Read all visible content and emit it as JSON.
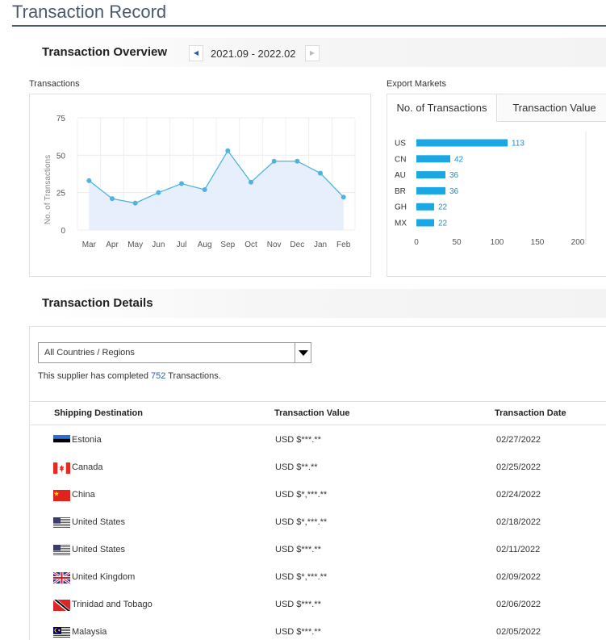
{
  "page": {
    "title": "Transaction Record"
  },
  "overview": {
    "title": "Transaction Overview",
    "range": "2021.09 - 2022.02",
    "prev_icon": "caret-left-icon",
    "next_icon": "caret-right-icon"
  },
  "transactions_chart": {
    "label": "Transactions",
    "chart_data": {
      "type": "area",
      "categories": [
        "Mar",
        "Apr",
        "May",
        "Jun",
        "Jul",
        "Aug",
        "Sep",
        "Oct",
        "Nov",
        "Dec",
        "Jan",
        "Feb"
      ],
      "series": [
        {
          "values": [
            33,
            21,
            18,
            25,
            31,
            27,
            53,
            32,
            46,
            46,
            38,
            22
          ]
        }
      ],
      "ylabel": "No. of Transactions",
      "xlabel": "",
      "ylim": [
        0,
        75
      ],
      "yticks": [
        0,
        25,
        50,
        75
      ],
      "grid": true,
      "line_color": "#4fb3e0",
      "fill_color": "#e6effb"
    }
  },
  "export_markets": {
    "label": "Export Markets",
    "tabs": [
      {
        "label": "No. of Transactions",
        "active": true
      },
      {
        "label": "Transaction Value",
        "active": false
      }
    ],
    "chart_data": {
      "type": "bar",
      "orientation": "horizontal",
      "categories": [
        "US",
        "CN",
        "AU",
        "BR",
        "GH",
        "MX"
      ],
      "values": [
        113,
        42,
        36,
        36,
        22,
        22
      ],
      "xlim": [
        0,
        200
      ],
      "xticks": [
        0,
        50,
        100,
        150,
        200
      ],
      "bar_color": "#1ba7e4",
      "label_color": "#1b8fc6"
    }
  },
  "details": {
    "title": "Transaction Details",
    "filter": {
      "value": "All Countries / Regions",
      "icon": "dropdown-arrow-icon"
    },
    "summary": {
      "prefix": "This supplier has completed ",
      "count": "752",
      "suffix": " Transactions."
    },
    "columns": [
      "Shipping Destination",
      "Transaction Value",
      "Transaction Date"
    ],
    "rows": [
      {
        "flag": "estonia-flag-icon",
        "destination": "Estonia",
        "value": "USD $***.**",
        "date": "02/27/2022"
      },
      {
        "flag": "canada-flag-icon",
        "destination": "Canada",
        "value": "USD $**.**",
        "date": "02/25/2022"
      },
      {
        "flag": "china-flag-icon",
        "destination": "China",
        "value": "USD $*,***.**",
        "date": "02/24/2022"
      },
      {
        "flag": "united-states-flag-icon",
        "destination": "United States",
        "value": "USD $*,***.**",
        "date": "02/18/2022"
      },
      {
        "flag": "united-states-flag-icon",
        "destination": "United States",
        "value": "USD $***.**",
        "date": "02/11/2022"
      },
      {
        "flag": "united-kingdom-flag-icon",
        "destination": "United Kingdom",
        "value": "USD $*,***.**",
        "date": "02/09/2022"
      },
      {
        "flag": "trinidad-and-tobago-flag-icon",
        "destination": "Trinidad and Tobago",
        "value": "USD $***.**",
        "date": "02/06/2022"
      },
      {
        "flag": "malaysia-flag-icon",
        "destination": "Malaysia",
        "value": "USD $***.**",
        "date": "02/05/2022"
      }
    ]
  }
}
